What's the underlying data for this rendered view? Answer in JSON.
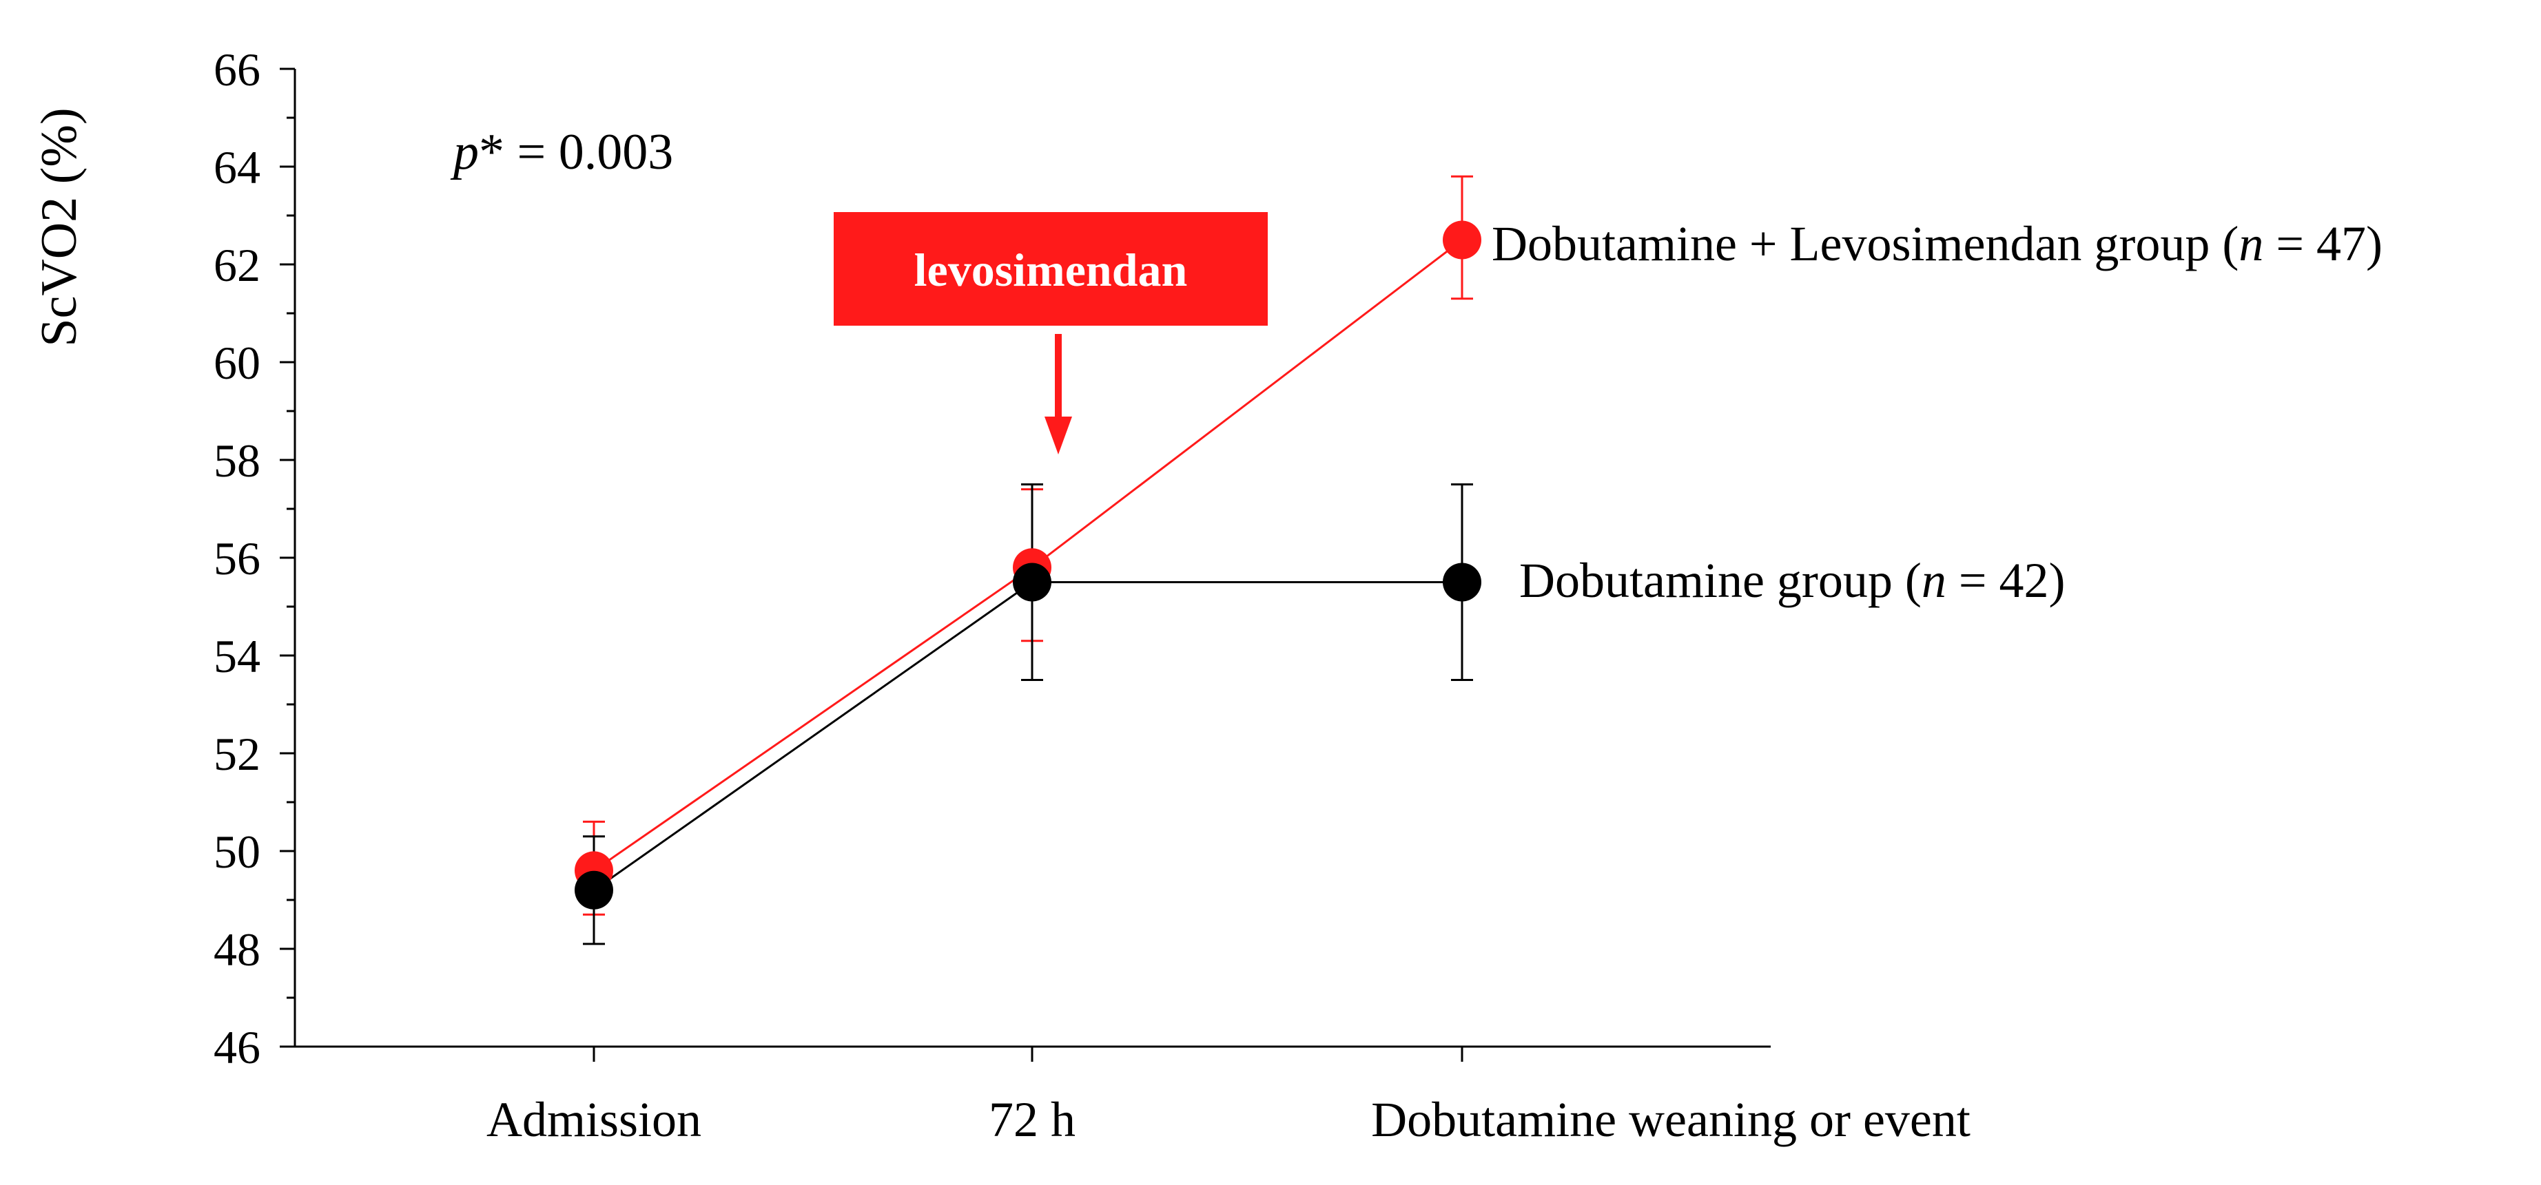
{
  "chart_data": {
    "type": "line",
    "ylabel": "ScVO2 (%)",
    "xlabel": "",
    "ylim": [
      46,
      66
    ],
    "yticks": [
      46,
      48,
      50,
      52,
      54,
      56,
      58,
      60,
      62,
      64,
      66
    ],
    "categories": [
      "Admission",
      "72 h",
      "Dobutamine weaning or event"
    ],
    "series": [
      {
        "name": "Dobutamine + Levosimendan group",
        "label_prefix": "Dobutamine + Levosimendan group (",
        "label_n_symbol": "n",
        "label_n_value": " = 47)",
        "color": "#ff1a1a",
        "values": [
          49.6,
          55.8,
          62.5
        ],
        "err_low": [
          48.7,
          54.3,
          61.3
        ],
        "err_high": [
          50.6,
          57.4,
          63.8
        ]
      },
      {
        "name": "Dobutamine group",
        "label_prefix": "Dobutamine group (",
        "label_n_symbol": "n",
        "label_n_value": " = 42)",
        "color": "#000000",
        "values": [
          49.2,
          55.5,
          55.5
        ],
        "err_low": [
          48.1,
          53.5,
          53.5
        ],
        "err_high": [
          50.3,
          57.5,
          57.5
        ]
      }
    ],
    "annotations": {
      "p_symbol": "p",
      "p_text": "* = 0.003",
      "banner": "levosimendan",
      "banner_color": "#ff1a1a"
    },
    "grid": false
  }
}
